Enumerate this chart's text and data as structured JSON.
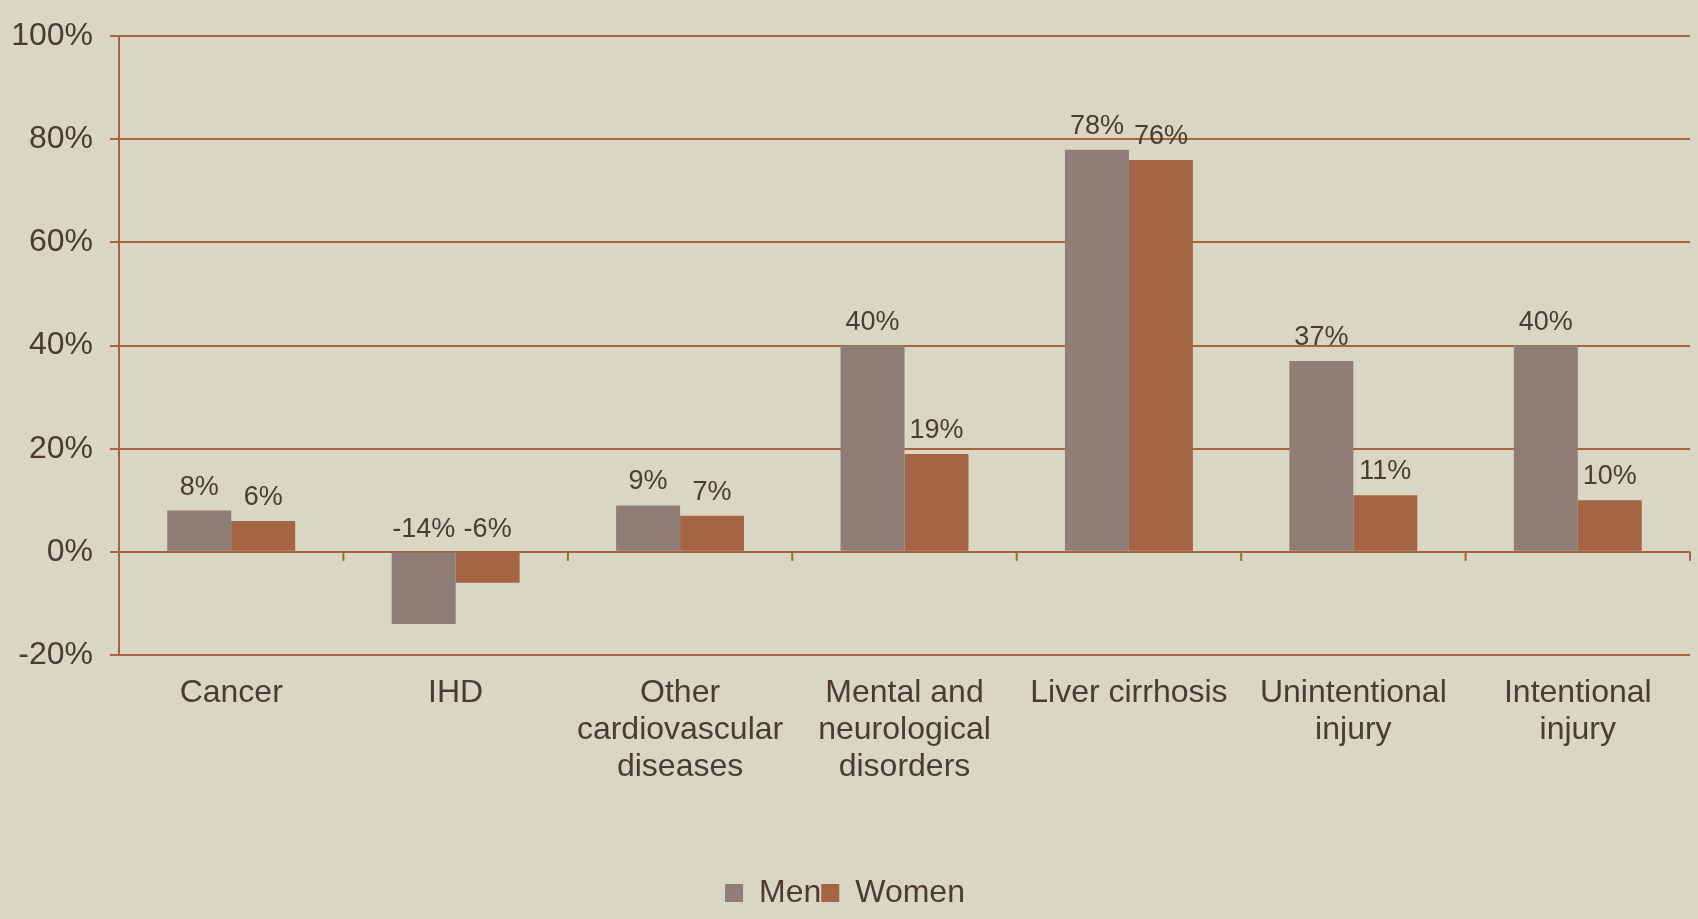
{
  "chart_data": {
    "type": "bar",
    "categories": [
      "Cancer",
      "IHD",
      "Other cardiovascular diseases",
      "Mental and neurological disorders",
      "Liver cirrhosis",
      "Unintentional injury",
      "Intentional injury"
    ],
    "series": [
      {
        "name": "Men",
        "color": "#8f7e75",
        "values": [
          8,
          -14,
          9,
          40,
          78,
          37,
          40
        ],
        "value_labels": [
          "8%",
          "-14%",
          "9%",
          "40%",
          "78%",
          "37%",
          "40%"
        ]
      },
      {
        "name": "Women",
        "color": "#a56544",
        "values": [
          6,
          -6,
          7,
          19,
          76,
          11,
          10
        ],
        "value_labels": [
          "6%",
          "-6%",
          "7%",
          "19%",
          "76%",
          "11%",
          "10%"
        ]
      }
    ],
    "ylim": [
      -20,
      100
    ],
    "yticks": [
      {
        "value": -20,
        "label": "-20%"
      },
      {
        "value": 0,
        "label": "0%"
      },
      {
        "value": 20,
        "label": "20%"
      },
      {
        "value": 40,
        "label": "40%"
      },
      {
        "value": 60,
        "label": "60%"
      },
      {
        "value": 80,
        "label": "80%"
      },
      {
        "value": 100,
        "label": "100%"
      }
    ],
    "grid": "y",
    "legend": "bottom"
  }
}
